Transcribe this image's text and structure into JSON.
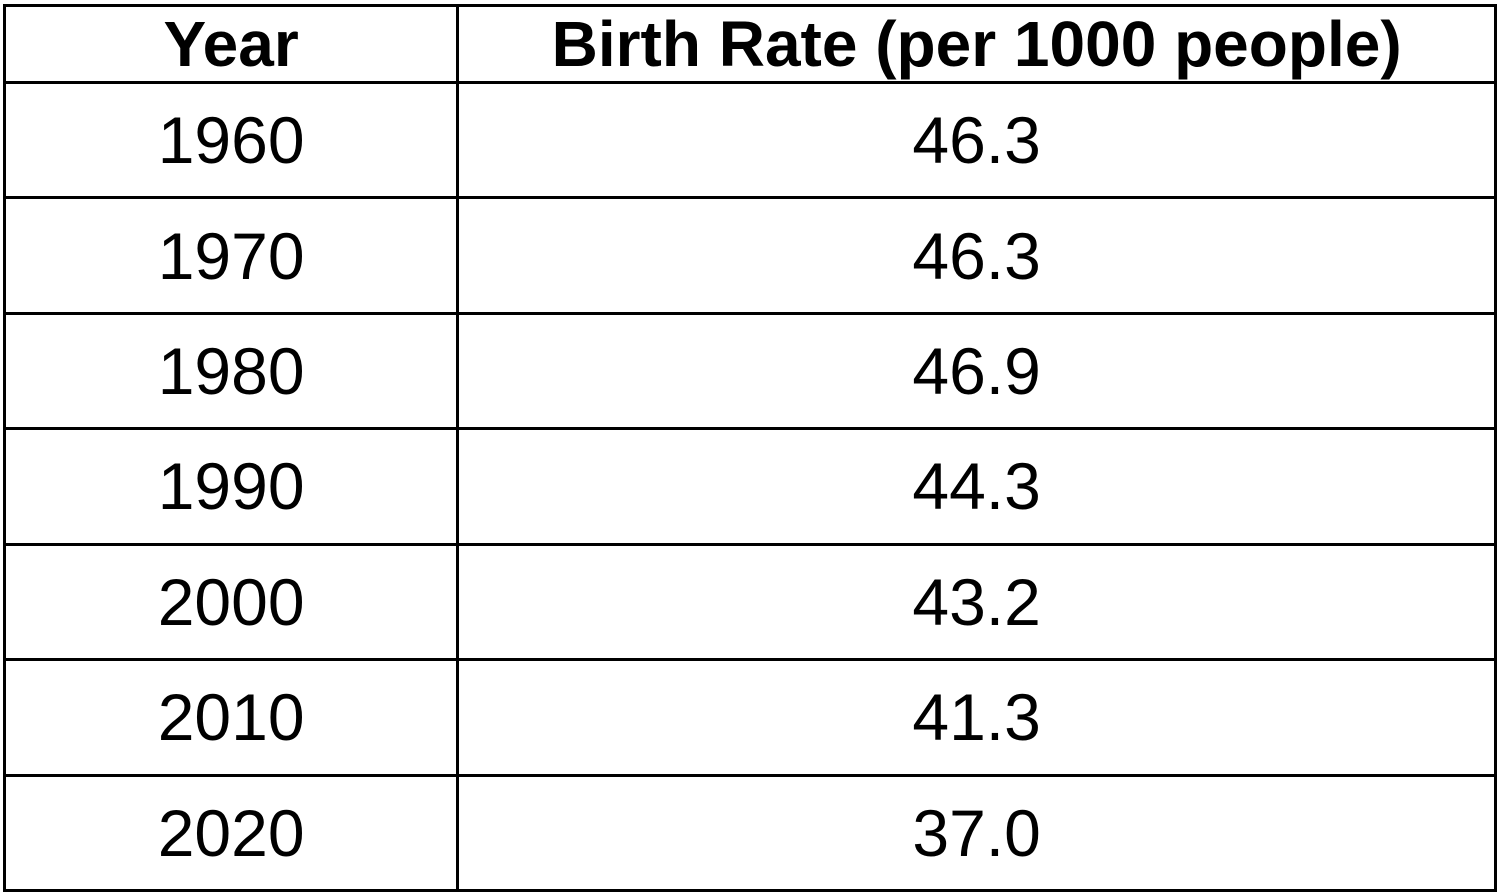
{
  "table": {
    "columns": {
      "year_header": "Year",
      "rate_header": "Birth Rate (per 1000 people)"
    },
    "rows": [
      {
        "year": "1960",
        "rate": "46.3"
      },
      {
        "year": "1970",
        "rate": "46.3"
      },
      {
        "year": "1980",
        "rate": "46.9"
      },
      {
        "year": "1990",
        "rate": "44.3"
      },
      {
        "year": "2000",
        "rate": "43.2"
      },
      {
        "year": "2010",
        "rate": "41.3"
      },
      {
        "year": "2020",
        "rate": "37.0"
      }
    ],
    "border_color": "#000000",
    "background_color": "#ffffff",
    "text_color": "#000000"
  },
  "chart_data": {
    "type": "table",
    "title": "",
    "columns": [
      "Year",
      "Birth Rate (per 1000 people)"
    ],
    "categories": [
      1960,
      1970,
      1980,
      1990,
      2000,
      2010,
      2020
    ],
    "values": [
      46.3,
      46.3,
      46.9,
      44.3,
      43.2,
      41.3,
      37.0
    ],
    "xlabel": "Year",
    "ylabel": "Birth Rate (per 1000 people)"
  }
}
